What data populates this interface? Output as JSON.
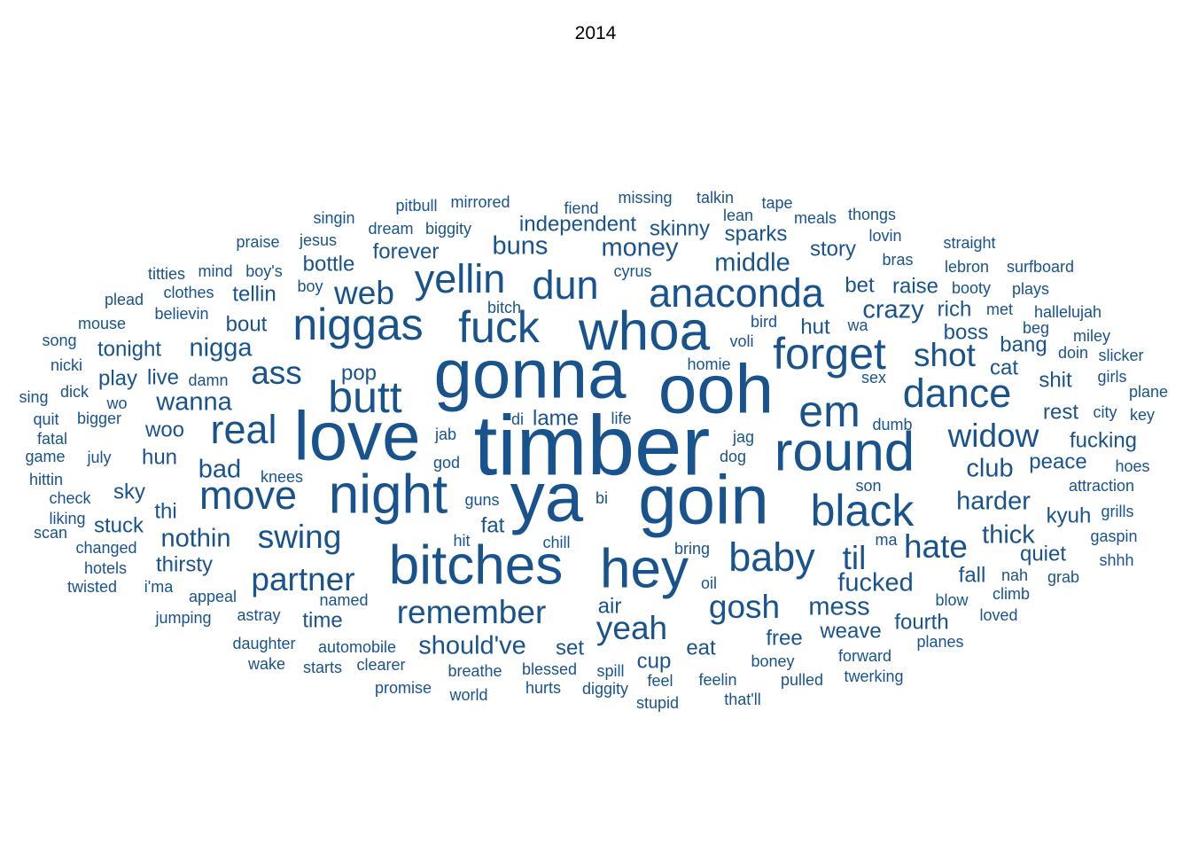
{
  "chart_data": {
    "type": "wordcloud",
    "title": "2014",
    "color": "#18538d",
    "words": [
      {
        "text": "timber",
        "weight": 10
      },
      {
        "text": "gonna",
        "weight": 9
      },
      {
        "text": "ooh",
        "weight": 9
      },
      {
        "text": "love",
        "weight": 9
      },
      {
        "text": "ya",
        "weight": 9
      },
      {
        "text": "goin",
        "weight": 9
      },
      {
        "text": "whoa",
        "weight": 7
      },
      {
        "text": "night",
        "weight": 7
      },
      {
        "text": "fuck",
        "weight": 6
      },
      {
        "text": "niggas",
        "weight": 6
      },
      {
        "text": "bitches",
        "weight": 7
      },
      {
        "text": "hey",
        "weight": 7
      },
      {
        "text": "round",
        "weight": 7
      },
      {
        "text": "black",
        "weight": 6
      },
      {
        "text": "butt",
        "weight": 6
      },
      {
        "text": "forget",
        "weight": 6
      },
      {
        "text": "anaconda",
        "weight": 5
      },
      {
        "text": "em",
        "weight": 6
      },
      {
        "text": "baby",
        "weight": 5
      },
      {
        "text": "real",
        "weight": 5
      },
      {
        "text": "move",
        "weight": 5
      },
      {
        "text": "dance",
        "weight": 5
      },
      {
        "text": "yellin",
        "weight": 5
      },
      {
        "text": "dun",
        "weight": 5
      },
      {
        "text": "widow",
        "weight": 4
      },
      {
        "text": "remember",
        "weight": 4
      },
      {
        "text": "swing",
        "weight": 4
      },
      {
        "text": "ass",
        "weight": 4
      },
      {
        "text": "web",
        "weight": 4
      },
      {
        "text": "til",
        "weight": 4
      },
      {
        "text": "shot",
        "weight": 4
      },
      {
        "text": "hate",
        "weight": 4
      },
      {
        "text": "partner",
        "weight": 4
      },
      {
        "text": "gosh",
        "weight": 4
      },
      {
        "text": "yeah",
        "weight": 4
      },
      {
        "text": "money",
        "weight": 3
      },
      {
        "text": "middle",
        "weight": 3
      },
      {
        "text": "crazy",
        "weight": 3
      },
      {
        "text": "nigga",
        "weight": 3
      },
      {
        "text": "wanna",
        "weight": 3
      },
      {
        "text": "bad",
        "weight": 3
      },
      {
        "text": "harder",
        "weight": 3
      },
      {
        "text": "fucked",
        "weight": 3
      },
      {
        "text": "mess",
        "weight": 3
      },
      {
        "text": "should've",
        "weight": 3
      },
      {
        "text": "buns",
        "weight": 3
      },
      {
        "text": "club",
        "weight": 3
      },
      {
        "text": "nothin",
        "weight": 3
      },
      {
        "text": "thick",
        "weight": 3
      },
      {
        "text": "bout",
        "weight": 2
      },
      {
        "text": "tellin",
        "weight": 2
      },
      {
        "text": "woo",
        "weight": 2
      },
      {
        "text": "hun",
        "weight": 2
      },
      {
        "text": "sky",
        "weight": 2
      },
      {
        "text": "thi",
        "weight": 2
      },
      {
        "text": "thirsty",
        "weight": 2
      },
      {
        "text": "time",
        "weight": 2
      },
      {
        "text": "air",
        "weight": 2
      },
      {
        "text": "fat",
        "weight": 2
      },
      {
        "text": "forever",
        "weight": 2
      },
      {
        "text": "independent",
        "weight": 2
      },
      {
        "text": "skinny",
        "weight": 2
      },
      {
        "text": "sparks",
        "weight": 2
      },
      {
        "text": "story",
        "weight": 2
      },
      {
        "text": "hut",
        "weight": 2
      },
      {
        "text": "raise",
        "weight": 2
      },
      {
        "text": "rich",
        "weight": 2
      },
      {
        "text": "boss",
        "weight": 2
      },
      {
        "text": "cat",
        "weight": 2
      },
      {
        "text": "shit",
        "weight": 2
      },
      {
        "text": "rest",
        "weight": 2
      },
      {
        "text": "peace",
        "weight": 2
      },
      {
        "text": "fall",
        "weight": 2
      },
      {
        "text": "quiet",
        "weight": 2
      },
      {
        "text": "kyuh",
        "weight": 2
      },
      {
        "text": "fucking",
        "weight": 2
      },
      {
        "text": "weave",
        "weight": 2
      },
      {
        "text": "fourth",
        "weight": 2
      },
      {
        "text": "free",
        "weight": 2
      },
      {
        "text": "eat",
        "weight": 2
      },
      {
        "text": "cup",
        "weight": 2
      },
      {
        "text": "set",
        "weight": 2
      },
      {
        "text": "live",
        "weight": 2
      },
      {
        "text": "play",
        "weight": 2
      },
      {
        "text": "tonight",
        "weight": 2
      },
      {
        "text": "stuck",
        "weight": 2
      },
      {
        "text": "bottle",
        "weight": 2
      },
      {
        "text": "pop",
        "weight": 2
      },
      {
        "text": "lame",
        "weight": 2
      },
      {
        "text": "bet",
        "weight": 2
      },
      {
        "text": "bang",
        "weight": 2
      },
      {
        "text": "bigger",
        "weight": 1
      },
      {
        "text": "july",
        "weight": 1
      },
      {
        "text": "wo",
        "weight": 1
      },
      {
        "text": "mouse",
        "weight": 1
      },
      {
        "text": "song",
        "weight": 1
      },
      {
        "text": "nicki",
        "weight": 1
      },
      {
        "text": "sing",
        "weight": 1
      },
      {
        "text": "dick",
        "weight": 1
      },
      {
        "text": "quit",
        "weight": 1
      },
      {
        "text": "fatal",
        "weight": 1
      },
      {
        "text": "game",
        "weight": 1
      },
      {
        "text": "hittin",
        "weight": 1
      },
      {
        "text": "check",
        "weight": 1
      },
      {
        "text": "liking",
        "weight": 1
      },
      {
        "text": "scan",
        "weight": 1
      },
      {
        "text": "changed",
        "weight": 1
      },
      {
        "text": "hotels",
        "weight": 1
      },
      {
        "text": "twisted",
        "weight": 1
      },
      {
        "text": "plead",
        "weight": 1
      },
      {
        "text": "titties",
        "weight": 1
      },
      {
        "text": "clothes",
        "weight": 1
      },
      {
        "text": "believin",
        "weight": 1
      },
      {
        "text": "praise",
        "weight": 1
      },
      {
        "text": "mind",
        "weight": 1
      },
      {
        "text": "boy's",
        "weight": 1
      },
      {
        "text": "boy",
        "weight": 1
      },
      {
        "text": "singin",
        "weight": 1
      },
      {
        "text": "jesus",
        "weight": 1
      },
      {
        "text": "pitbull",
        "weight": 1
      },
      {
        "text": "mirrored",
        "weight": 1
      },
      {
        "text": "dream",
        "weight": 1
      },
      {
        "text": "biggity",
        "weight": 1
      },
      {
        "text": "fiend",
        "weight": 1
      },
      {
        "text": "missing",
        "weight": 1
      },
      {
        "text": "talkin",
        "weight": 1
      },
      {
        "text": "tape",
        "weight": 1
      },
      {
        "text": "lean",
        "weight": 1
      },
      {
        "text": "meals",
        "weight": 1
      },
      {
        "text": "thongs",
        "weight": 1
      },
      {
        "text": "lovin",
        "weight": 1
      },
      {
        "text": "straight",
        "weight": 1
      },
      {
        "text": "bras",
        "weight": 1
      },
      {
        "text": "lebron",
        "weight": 1
      },
      {
        "text": "surfboard",
        "weight": 1
      },
      {
        "text": "booty",
        "weight": 1
      },
      {
        "text": "plays",
        "weight": 1
      },
      {
        "text": "cyrus",
        "weight": 1
      },
      {
        "text": "bitch",
        "weight": 1
      },
      {
        "text": "met",
        "weight": 1
      },
      {
        "text": "hallelujah",
        "weight": 1
      },
      {
        "text": "bird",
        "weight": 1
      },
      {
        "text": "wa",
        "weight": 1
      },
      {
        "text": "beg",
        "weight": 1
      },
      {
        "text": "miley",
        "weight": 1
      },
      {
        "text": "doin",
        "weight": 1
      },
      {
        "text": "slicker",
        "weight": 1
      },
      {
        "text": "voli",
        "weight": 1
      },
      {
        "text": "homie",
        "weight": 1
      },
      {
        "text": "sex",
        "weight": 1
      },
      {
        "text": "girls",
        "weight": 1
      },
      {
        "text": "plane",
        "weight": 1
      },
      {
        "text": "damn",
        "weight": 1
      },
      {
        "text": "city",
        "weight": 1
      },
      {
        "text": "key",
        "weight": 1
      },
      {
        "text": "di",
        "weight": 1
      },
      {
        "text": "life",
        "weight": 1
      },
      {
        "text": "dumb",
        "weight": 1
      },
      {
        "text": "jab",
        "weight": 1
      },
      {
        "text": "jag",
        "weight": 1
      },
      {
        "text": "god",
        "weight": 1
      },
      {
        "text": "dog",
        "weight": 1
      },
      {
        "text": "hoes",
        "weight": 1
      },
      {
        "text": "knees",
        "weight": 1
      },
      {
        "text": "attraction",
        "weight": 1
      },
      {
        "text": "son",
        "weight": 1
      },
      {
        "text": "grills",
        "weight": 1
      },
      {
        "text": "guns",
        "weight": 1
      },
      {
        "text": "bi",
        "weight": 1
      },
      {
        "text": "gaspin",
        "weight": 1
      },
      {
        "text": "hit",
        "weight": 1
      },
      {
        "text": "chill",
        "weight": 1
      },
      {
        "text": "bring",
        "weight": 1
      },
      {
        "text": "ma",
        "weight": 1
      },
      {
        "text": "shhh",
        "weight": 1
      },
      {
        "text": "nah",
        "weight": 1
      },
      {
        "text": "grab",
        "weight": 1
      },
      {
        "text": "oil",
        "weight": 1
      },
      {
        "text": "climb",
        "weight": 1
      },
      {
        "text": "i'ma",
        "weight": 1
      },
      {
        "text": "appeal",
        "weight": 1
      },
      {
        "text": "named",
        "weight": 1
      },
      {
        "text": "blow",
        "weight": 1
      },
      {
        "text": "loved",
        "weight": 1
      },
      {
        "text": "jumping",
        "weight": 1
      },
      {
        "text": "astray",
        "weight": 1
      },
      {
        "text": "daughter",
        "weight": 1
      },
      {
        "text": "automobile",
        "weight": 1
      },
      {
        "text": "planes",
        "weight": 1
      },
      {
        "text": "wake",
        "weight": 1
      },
      {
        "text": "starts",
        "weight": 1
      },
      {
        "text": "clearer",
        "weight": 1
      },
      {
        "text": "boney",
        "weight": 1
      },
      {
        "text": "forward",
        "weight": 1
      },
      {
        "text": "breathe",
        "weight": 1
      },
      {
        "text": "blessed",
        "weight": 1
      },
      {
        "text": "spill",
        "weight": 1
      },
      {
        "text": "feel",
        "weight": 1
      },
      {
        "text": "feelin",
        "weight": 1
      },
      {
        "text": "pulled",
        "weight": 1
      },
      {
        "text": "twerking",
        "weight": 1
      },
      {
        "text": "promise",
        "weight": 1
      },
      {
        "text": "hurts",
        "weight": 1
      },
      {
        "text": "diggity",
        "weight": 1
      },
      {
        "text": "world",
        "weight": 1
      },
      {
        "text": "stupid",
        "weight": 1
      },
      {
        "text": "that'll",
        "weight": 1
      }
    ]
  }
}
